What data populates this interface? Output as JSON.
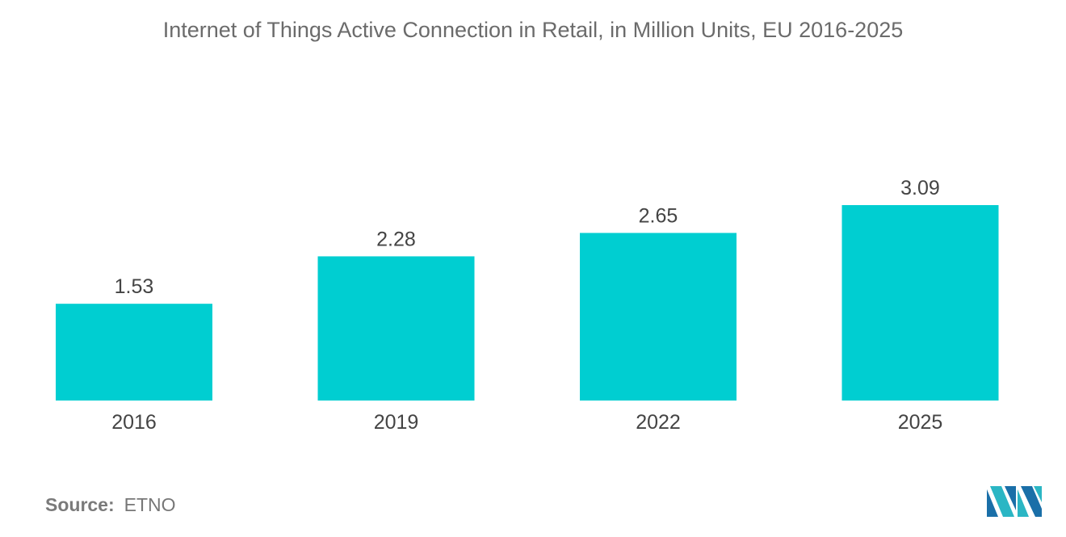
{
  "chart_data": {
    "type": "bar",
    "title": "Internet of Things Active Connection in Retail, in Million Units, EU 2016-2025",
    "categories": [
      "2016",
      "2019",
      "2022",
      "2025"
    ],
    "values": [
      1.53,
      2.28,
      2.65,
      3.09
    ],
    "value_labels": [
      "1.53",
      "2.28",
      "2.65",
      "3.09"
    ],
    "xlabel": "",
    "ylabel": "",
    "ylim": [
      0,
      3.09
    ],
    "grid": false,
    "legend": "none",
    "bar_color": "#00ced1"
  },
  "source": {
    "label": "Source:",
    "value": "ETNO"
  },
  "logo": {
    "icon": "mordor-intelligence-logo",
    "colors": [
      "#1a6fa8",
      "#2bb6c4"
    ]
  }
}
